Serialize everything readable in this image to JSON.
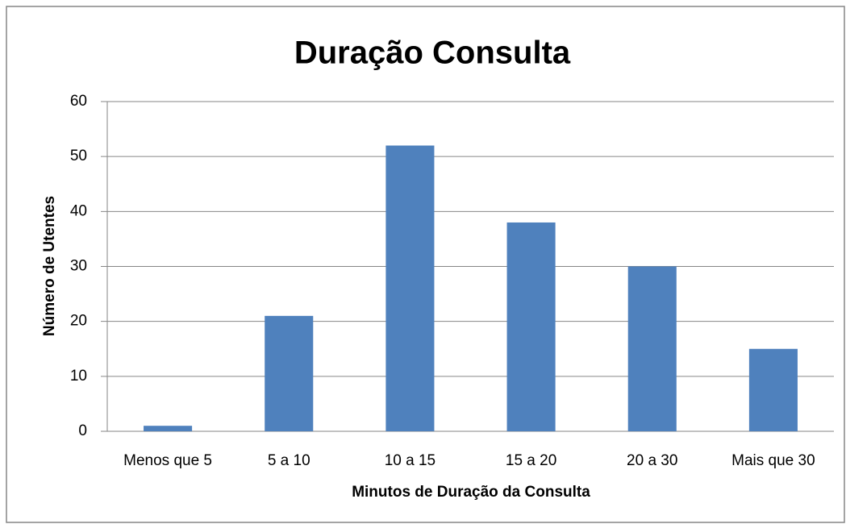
{
  "chart_data": {
    "type": "bar",
    "title": "Duração Consulta",
    "x_label": "Minutos de Duração da Consulta",
    "y_label": "Número de Utentes",
    "categories": [
      "Menos que 5",
      "5 a 10",
      "10 a 15",
      "15 a 20",
      "20 a 30",
      "Mais que 30"
    ],
    "values": [
      1,
      21,
      52,
      38,
      30,
      15
    ],
    "color": "#4f81bd",
    "ylim": [
      0,
      60
    ],
    "yticks": [
      0,
      10,
      20,
      30,
      40,
      50,
      60
    ],
    "grid": true
  }
}
